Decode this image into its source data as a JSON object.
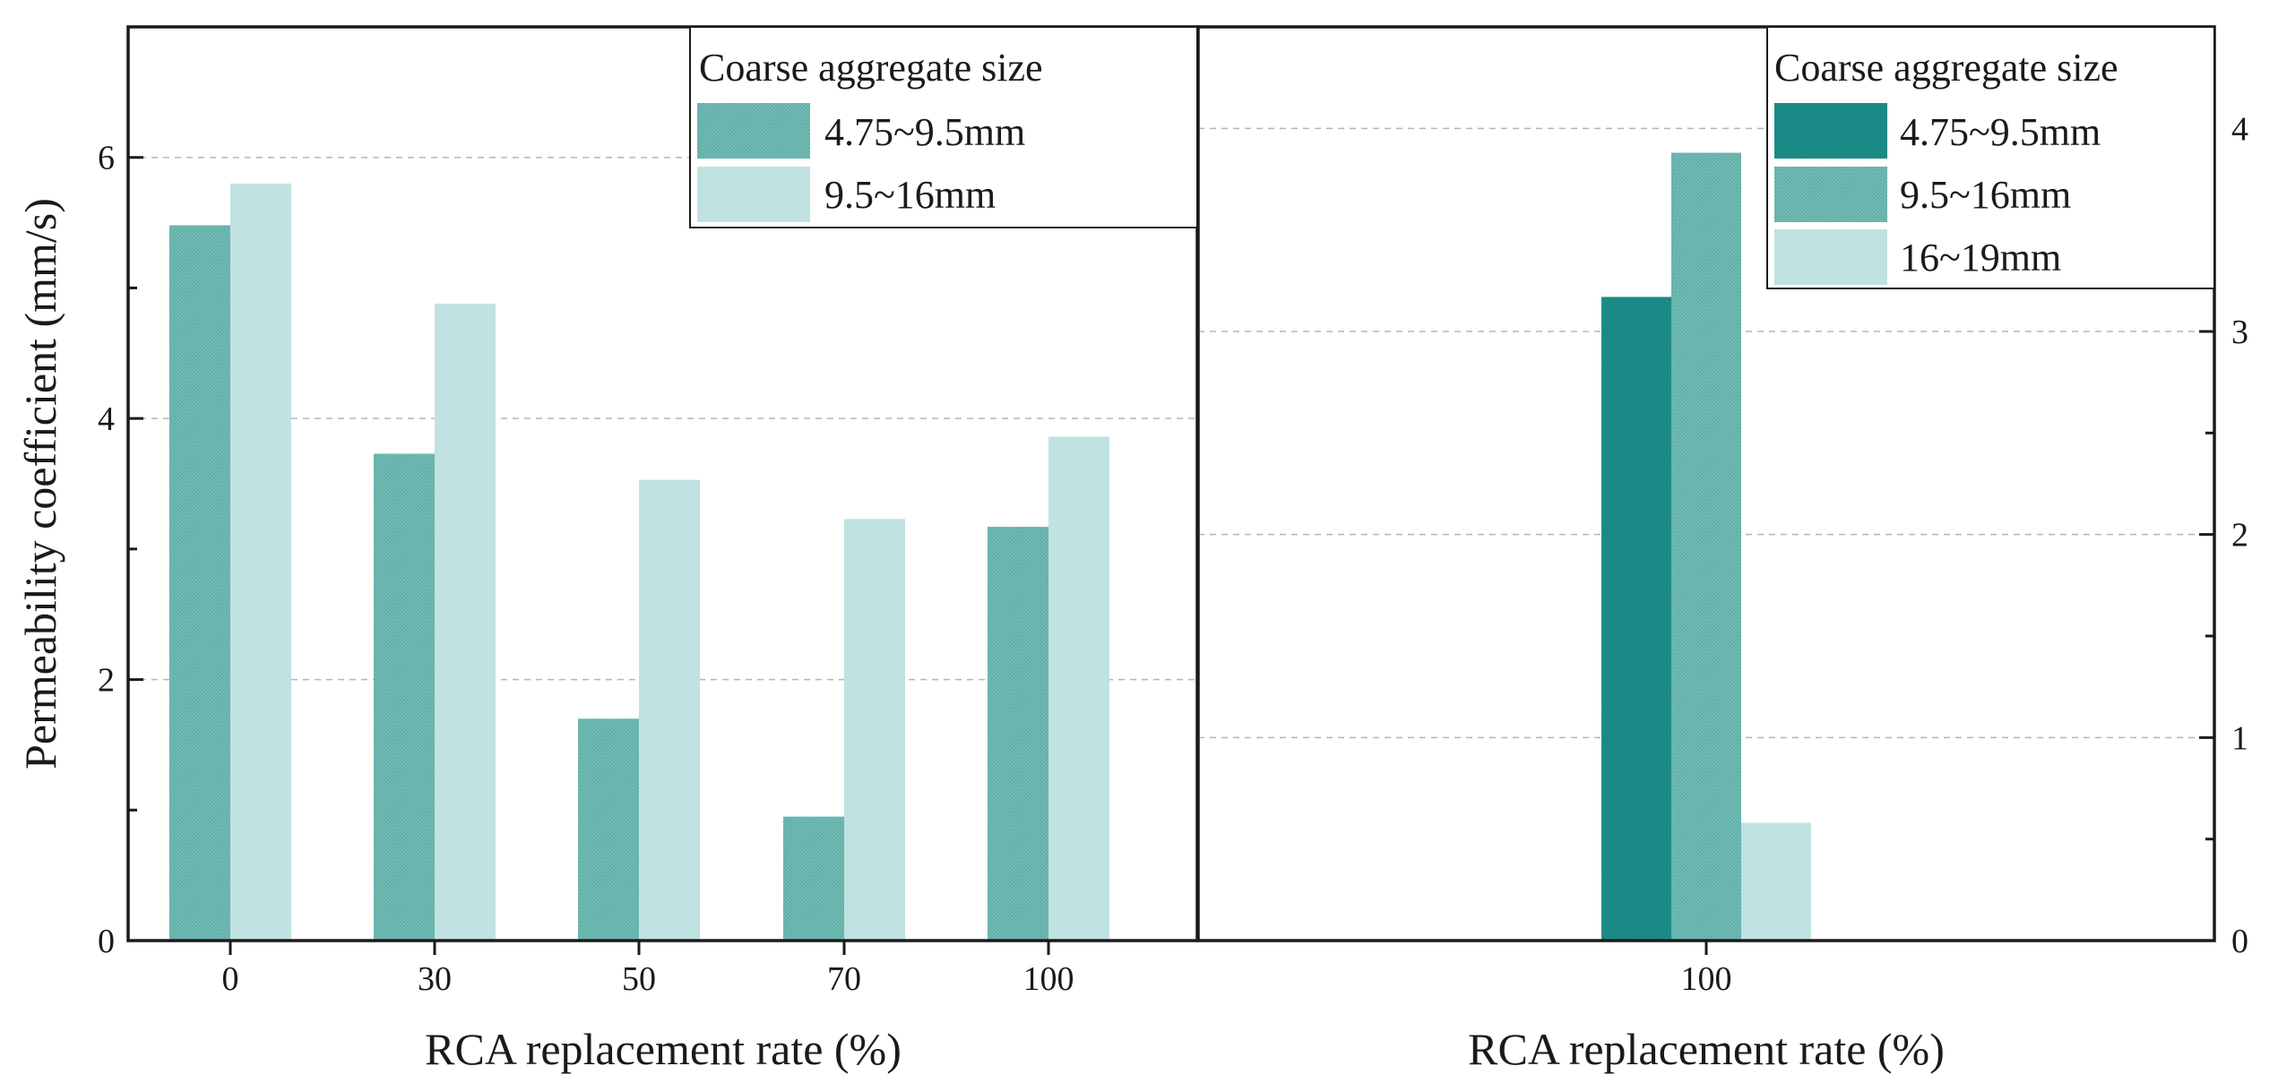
{
  "colors": {
    "size_4_75_9_5_left": "#72bcb6",
    "size_9_5_16_left": "#c0e2e1",
    "size_4_75_9_5_right": "#1d8f8b",
    "size_9_5_16_right": "#72bcb6",
    "size_16_19_right": "#c0e2e1"
  },
  "chart_data": [
    {
      "type": "bar",
      "xlabel": "RCA replacement rate (%)",
      "ylabel": "Permeability coefficient (mm/s)",
      "ylim": [
        0,
        7
      ],
      "yticks": [
        "0",
        "2",
        "4",
        "6"
      ],
      "grid": true,
      "legend": {
        "title": "Coarse aggregate size",
        "placement": "top-right"
      },
      "categories": [
        "0",
        "30",
        "50",
        "70",
        "100"
      ],
      "series": [
        {
          "name": "4.75~9.5mm",
          "values": [
            5.48,
            3.73,
            1.7,
            0.95,
            3.17
          ]
        },
        {
          "name": "9.5~16mm",
          "values": [
            5.8,
            4.88,
            3.53,
            3.23,
            3.86
          ]
        }
      ]
    },
    {
      "type": "bar",
      "xlabel": "RCA replacement rate (%)",
      "ylabel": "",
      "ylim": [
        0,
        4.5
      ],
      "yticks": [
        "0",
        "1",
        "2",
        "3",
        "4"
      ],
      "y_axis_side": "right",
      "grid": true,
      "legend": {
        "title": "Coarse aggregate size",
        "placement": "top-right"
      },
      "categories": [
        "100"
      ],
      "series": [
        {
          "name": "4.75~9.5mm",
          "values": [
            3.17
          ]
        },
        {
          "name": "9.5~16mm",
          "values": [
            3.88
          ]
        },
        {
          "name": "16~19mm",
          "values": [
            0.58
          ]
        }
      ]
    }
  ]
}
